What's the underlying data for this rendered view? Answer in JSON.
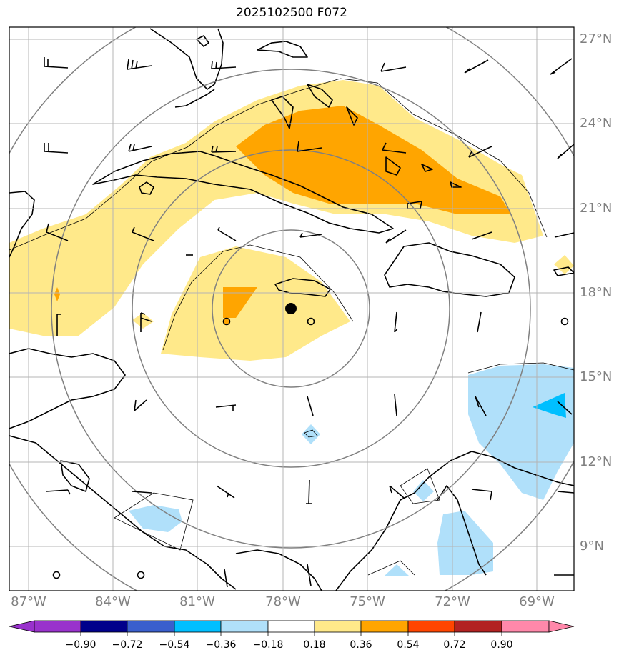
{
  "title": "2025102500 F072",
  "lat_labels": [
    "27°N",
    "24°N",
    "21°N",
    "18°N",
    "15°N",
    "12°N",
    "9°N"
  ],
  "lon_labels": [
    "87°W",
    "84°W",
    "81°W",
    "78°W",
    "75°W",
    "72°W",
    "69°W"
  ],
  "colorbar": {
    "ticks": [
      "−0.90",
      "−0.72",
      "−0.54",
      "−0.36",
      "−0.18",
      "0.18",
      "0.36",
      "0.54",
      "0.72",
      "0.90"
    ],
    "colors": [
      "#9932cc",
      "#00008b",
      "#3a5fcd",
      "#00bfff",
      "#b0e0fa",
      "#ffffff",
      "#ffe98a",
      "#ffa500",
      "#ff4500",
      "#b22222",
      "#ff88aa"
    ]
  },
  "center_marker": "storm-center",
  "icons": [
    "wind-barb-icon",
    "storm-center-icon",
    "ring-marker-icon"
  ]
}
